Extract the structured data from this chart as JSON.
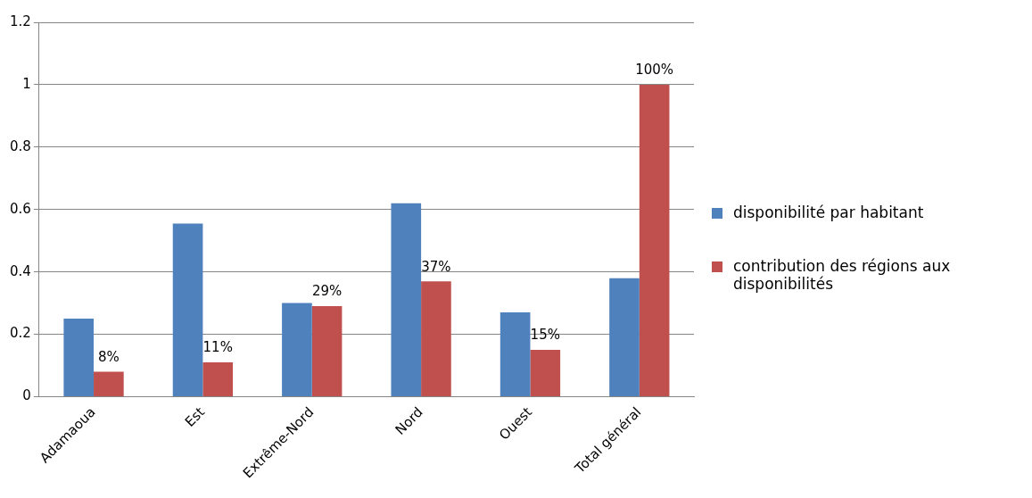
{
  "chart_data": {
    "type": "bar",
    "categories": [
      "Adamaoua",
      "Est",
      "Extrême-Nord",
      "Nord",
      "Ouest",
      "Total général"
    ],
    "series": [
      {
        "name": "disponibilité par habitant",
        "color": "#4f81bd",
        "values": [
          0.25,
          0.555,
          0.3,
          0.62,
          0.27,
          0.38
        ]
      },
      {
        "name": "contribution  des régions aux disponibilités",
        "color": "#c0504d",
        "values": [
          0.08,
          0.11,
          0.29,
          0.37,
          0.15,
          1
        ],
        "value_labels": [
          "8%",
          "11%",
          "29%",
          "37%",
          "15%",
          "100%"
        ]
      }
    ],
    "ylim": [
      0,
      1.2
    ],
    "yticks": [
      0,
      0.2,
      0.4,
      0.6,
      0.8,
      1,
      1.2
    ],
    "grid": "y",
    "legend": "right"
  }
}
